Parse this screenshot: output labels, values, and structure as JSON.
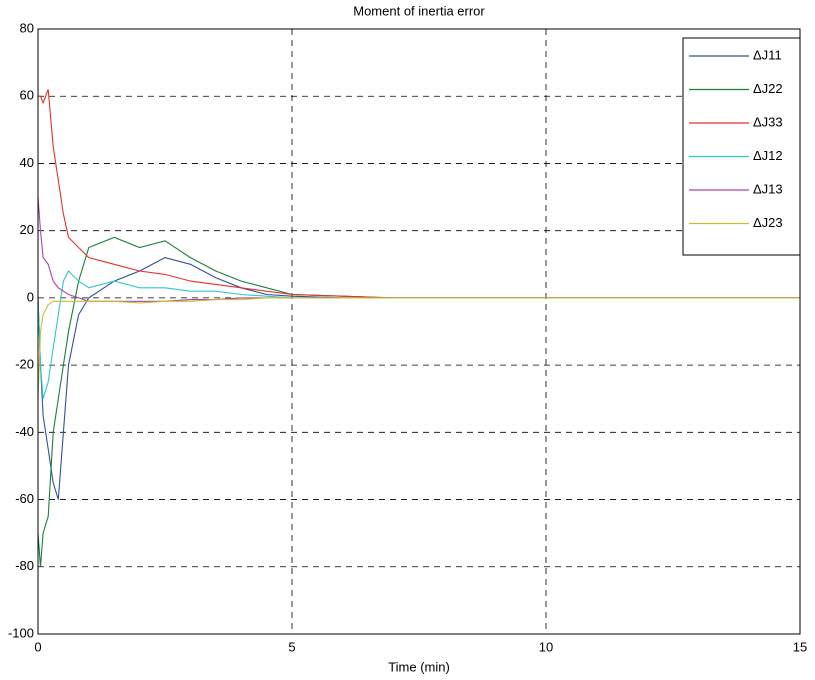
{
  "chart_data": {
    "type": "line",
    "title": "Moment of inertia error",
    "x_label": "Time (min)",
    "x": [
      0,
      0.05,
      0.1,
      0.2,
      0.3,
      0.4,
      0.5,
      0.6,
      0.8,
      1,
      1.5,
      2,
      2.5,
      3,
      3.5,
      4,
      4.5,
      5,
      6,
      7,
      8,
      10,
      15
    ],
    "series": [
      {
        "name": "ΔJ11",
        "color": "#3050a0",
        "values": [
          0,
          -20,
          -35,
          -45,
          -55,
          -60,
          -40,
          -20,
          -5,
          0,
          5,
          8,
          12,
          10,
          6,
          3,
          1,
          0.5,
          0,
          0,
          0,
          0,
          0
        ]
      },
      {
        "name": "ΔJ22",
        "color": "#1a7f3c",
        "values": [
          -70,
          -80,
          -70,
          -65,
          -40,
          -30,
          -20,
          -10,
          5,
          15,
          18,
          15,
          17,
          12,
          8,
          5,
          3,
          1,
          0.5,
          0,
          0,
          0,
          0
        ]
      },
      {
        "name": "ΔJ33",
        "color": "#e8302a",
        "values": [
          60,
          60,
          58,
          62,
          45,
          35,
          25,
          18,
          15,
          12,
          10,
          8,
          7,
          5,
          4,
          3,
          2,
          1,
          0.5,
          0,
          0,
          0,
          0
        ]
      },
      {
        "name": "ΔJ12",
        "color": "#30c8c8",
        "values": [
          0,
          -20,
          -30,
          -25,
          -15,
          -5,
          5,
          8,
          5,
          3,
          5,
          3,
          3,
          2,
          2,
          1,
          0.5,
          0,
          0,
          0,
          0,
          0,
          0
        ]
      },
      {
        "name": "ΔJ13",
        "color": "#b040b0",
        "values": [
          30,
          20,
          12,
          10,
          5,
          3,
          2,
          1,
          0,
          -1,
          -1,
          -1,
          -1,
          -0.5,
          -0.5,
          0,
          0,
          0,
          0,
          0,
          0,
          0,
          0
        ]
      },
      {
        "name": "ΔJ23",
        "color": "#c8c030",
        "values": [
          -30,
          -10,
          -5,
          -2,
          -1,
          -1,
          -1,
          -1,
          -1,
          -1,
          -1,
          -1.5,
          -1,
          -1,
          -0.5,
          -0.5,
          0,
          0,
          0,
          0,
          0,
          0,
          0
        ]
      }
    ],
    "xlim": [
      0,
      15
    ],
    "xticks": [
      0,
      5,
      10,
      15
    ],
    "ylim": [
      -100,
      80
    ],
    "yticks": [
      -100,
      -80,
      -60,
      -40,
      -20,
      0,
      20,
      40,
      60,
      80
    ],
    "grid": true,
    "legend": "upper right"
  }
}
